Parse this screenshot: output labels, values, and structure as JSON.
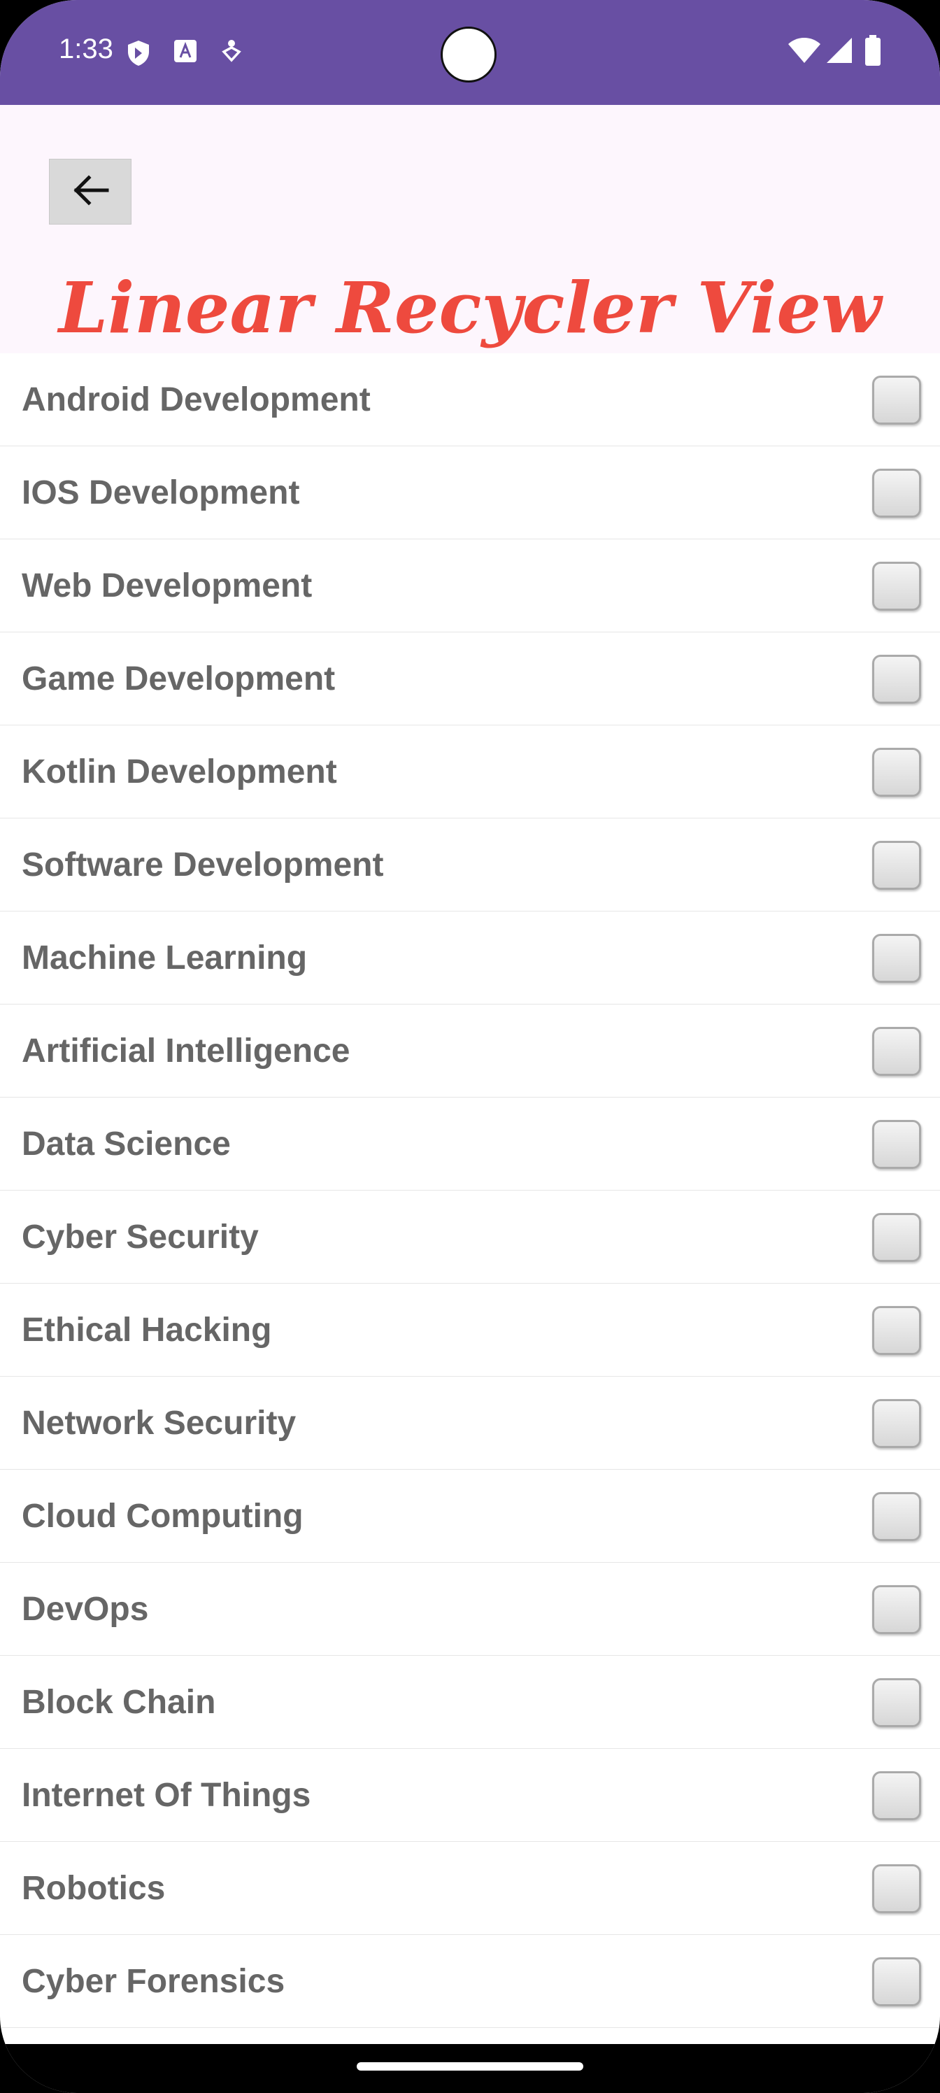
{
  "status_bar": {
    "time": "1:33",
    "left_icons": [
      "shield-icon",
      "text-a-icon",
      "accessibility-icon"
    ],
    "right_icons": [
      "wifi-icon",
      "signal-icon",
      "battery-icon"
    ],
    "color": "#684fa3"
  },
  "app_bar": {
    "back_icon": "arrow-left-icon",
    "title": "Linear Recycler View",
    "title_color": "#ee4a3e"
  },
  "list": {
    "items": [
      {
        "label": "Android Development",
        "checked": false
      },
      {
        "label": "IOS Development",
        "checked": false
      },
      {
        "label": "Web Development",
        "checked": false
      },
      {
        "label": "Game Development",
        "checked": false
      },
      {
        "label": "Kotlin Development",
        "checked": false
      },
      {
        "label": "Software Development",
        "checked": false
      },
      {
        "label": "Machine Learning",
        "checked": false
      },
      {
        "label": "Artificial Intelligence",
        "checked": false
      },
      {
        "label": "Data Science",
        "checked": false
      },
      {
        "label": "Cyber Security",
        "checked": false
      },
      {
        "label": "Ethical Hacking",
        "checked": false
      },
      {
        "label": "Network Security",
        "checked": false
      },
      {
        "label": "Cloud Computing",
        "checked": false
      },
      {
        "label": "DevOps",
        "checked": false
      },
      {
        "label": "Block Chain",
        "checked": false
      },
      {
        "label": "Internet Of Things",
        "checked": false
      },
      {
        "label": "Robotics",
        "checked": false
      },
      {
        "label": "Cyber Forensics",
        "checked": false
      }
    ]
  }
}
